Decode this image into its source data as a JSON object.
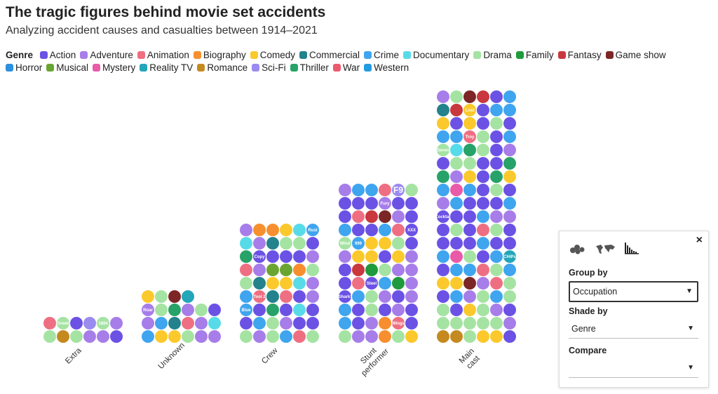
{
  "title": "The tragic figures behind movie set accidents",
  "subtitle": "Analyzing accident causes and casualties between 1914–2021",
  "legend": {
    "title": "Genre",
    "items": [
      {
        "name": "Action",
        "color": "#6b52e5"
      },
      {
        "name": "Adventure",
        "color": "#a77de9"
      },
      {
        "name": "Animation",
        "color": "#ef6f82"
      },
      {
        "name": "Biography",
        "color": "#f78f2e"
      },
      {
        "name": "Comedy",
        "color": "#fbc92b"
      },
      {
        "name": "Commercial",
        "color": "#23828c"
      },
      {
        "name": "Crime",
        "color": "#3fa5ef"
      },
      {
        "name": "Documentary",
        "color": "#58dbe8"
      },
      {
        "name": "Drama",
        "color": "#a5e3a3"
      },
      {
        "name": "Family",
        "color": "#1f9a3c"
      },
      {
        "name": "Fantasy",
        "color": "#c8383d"
      },
      {
        "name": "Game show",
        "color": "#7d2626"
      },
      {
        "name": "Horror",
        "color": "#2c8fe0"
      },
      {
        "name": "Musical",
        "color": "#6aa532"
      },
      {
        "name": "Mystery",
        "color": "#e95aa8"
      },
      {
        "name": "Reality TV",
        "color": "#23a6b9"
      },
      {
        "name": "Romance",
        "color": "#c48a1f"
      },
      {
        "name": "Sci-Fi",
        "color": "#9a8bf0"
      },
      {
        "name": "Thriller",
        "color": "#27a268"
      },
      {
        "name": "War",
        "color": "#ec5a6f"
      },
      {
        "name": "Western",
        "color": "#239be0"
      }
    ]
  },
  "chart_data": {
    "type": "dot-histogram",
    "group_by": "Occupation",
    "shade_by": "Genre",
    "categories": [
      {
        "label": [
          "Extra"
        ],
        "rows": [
          [
            "Drama",
            "Romance",
            "Drama",
            "Adventure",
            "Adventure",
            "Action"
          ],
          [
            "Animation",
            "Drama",
            "Action",
            "Sci-Fi",
            "Drama",
            "Adventure"
          ]
        ],
        "labels": {
          "1,1": "Greek",
          "1,4": "1884"
        }
      },
      {
        "label": [
          "Unknown"
        ],
        "rows": [
          [
            "Crime",
            "Comedy",
            "Comedy",
            "Drama",
            "Adventure",
            "Adventure"
          ],
          [
            "Adventure",
            "Crime",
            "Commercial",
            "Animation",
            "Adventure",
            "Documentary"
          ],
          [
            "Adventure",
            "Drama",
            "Thriller",
            "Adventure",
            "Drama",
            "Action"
          ],
          [
            "Comedy",
            "Drama",
            "Game show",
            "Reality TV"
          ]
        ],
        "labels": {
          "2,0": "Roar"
        }
      },
      {
        "label": [
          "Crew"
        ],
        "rows": [
          [
            "Drama",
            "Adventure",
            "Drama",
            "Crime",
            "Animation",
            "Drama"
          ],
          [
            "Action",
            "Crime",
            "Drama",
            "Adventure",
            "Action",
            "Action"
          ],
          [
            "Crime",
            "Action",
            "Thriller",
            "Action",
            "Documentary",
            "Action"
          ],
          [
            "Crime",
            "Animation",
            "Commercial",
            "Animation",
            "Action",
            "Adventure"
          ],
          [
            "Drama",
            "Commercial",
            "Comedy",
            "Comedy",
            "Documentary",
            "Adventure"
          ],
          [
            "Animation",
            "Adventure",
            "Musical",
            "Musical",
            "Biography",
            "Drama"
          ],
          [
            "Thriller",
            "Action",
            "Action",
            "Action",
            "Action",
            "Adventure"
          ],
          [
            "Documentary",
            "Adventure",
            "Commercial",
            "Drama",
            "Drama",
            "Action"
          ],
          [
            "Adventure",
            "Biography",
            "Biography",
            "Comedy",
            "Documentary",
            "Crime"
          ]
        ],
        "labels": {
          "2,0": "Blue",
          "3,1": "Tool 2",
          "6,1": "Copy",
          "8,5": "Rust"
        }
      },
      {
        "label": [
          "Stunt",
          "performer"
        ],
        "rows": [
          [
            "Drama",
            "Adventure",
            "Adventure",
            "Biography",
            "Drama",
            "Comedy"
          ],
          [
            "Crime",
            "Action",
            "Adventure",
            "Biography",
            "Animation",
            "Action"
          ],
          [
            "Crime",
            "Action",
            "Drama",
            "Action",
            "Adventure",
            "Action"
          ],
          [
            "Action",
            "Crime",
            "Drama",
            "Adventure",
            "Action",
            "Adventure"
          ],
          [
            "Action",
            "Animation",
            "Action",
            "Crime",
            "Family",
            "Adventure"
          ],
          [
            "Action",
            "Fantasy",
            "Family",
            "Drama",
            "Adventure",
            "Adventure"
          ],
          [
            "Adventure",
            "Comedy",
            "Comedy",
            "Action",
            "Comedy",
            "Adventure"
          ],
          [
            "Drama",
            "Crime",
            "Comedy",
            "Comedy",
            "Drama",
            "Action"
          ],
          [
            "Crime",
            "Action",
            "Action",
            "Crime",
            "Animation",
            "Action"
          ],
          [
            "Action",
            "Animation",
            "Fantasy",
            "Game show",
            "Adventure",
            "Action"
          ],
          [
            "Action",
            "Action",
            "Action",
            "Adventure",
            "Action",
            "Action"
          ],
          [
            "Adventure",
            "Crime",
            "Crime",
            "Animation",
            "Sci-Fi",
            "Drama"
          ]
        ],
        "labels": {
          "1,4": "Wings",
          "3,0": "Shark!",
          "4,2": "Steel",
          "7,0": "Wind",
          "7,1": "999",
          "8,5": "XXX",
          "10,3": "Fury",
          "11,4": "F9"
        }
      },
      {
        "label": [
          "Main",
          "cast"
        ],
        "rows": [
          [
            "Romance",
            "Romance",
            "Drama",
            "Comedy",
            "Comedy",
            "Action"
          ],
          [
            "Drama",
            "Drama",
            "Drama",
            "Drama",
            "Drama",
            "Adventure"
          ],
          [
            "Drama",
            "Action",
            "Comedy",
            "Drama",
            "Adventure",
            "Action"
          ],
          [
            "Action",
            "Crime",
            "Adventure",
            "Drama",
            "Crime",
            "Drama"
          ],
          [
            "Comedy",
            "Comedy",
            "Game show",
            "Adventure",
            "Animation",
            "Drama"
          ],
          [
            "Action",
            "Crime",
            "Crime",
            "Animation",
            "Drama",
            "Crime"
          ],
          [
            "Crime",
            "Mystery",
            "Drama",
            "Action",
            "Crime",
            "Reality TV"
          ],
          [
            "Action",
            "Action",
            "Action",
            "Crime",
            "Action",
            "Action"
          ],
          [
            "Action",
            "Drama",
            "Action",
            "Animation",
            "Drama",
            "Action"
          ],
          [
            "Action",
            "Action",
            "Action",
            "Crime",
            "Adventure",
            "Adventure"
          ],
          [
            "Adventure",
            "Crime",
            "Action",
            "Action",
            "Action",
            "Crime"
          ],
          [
            "Crime",
            "Mystery",
            "Crime",
            "Action",
            "Drama",
            "Action"
          ],
          [
            "Thriller",
            "Adventure",
            "Comedy",
            "Action",
            "Thriller",
            "Comedy"
          ],
          [
            "Action",
            "Drama",
            "Drama",
            "Action",
            "Action",
            "Thriller"
          ],
          [
            "Drama",
            "Documentary",
            "Thriller",
            "Drama",
            "Action",
            "Adventure"
          ],
          [
            "Crime",
            "Crime",
            "Animation",
            "Drama",
            "Action",
            "Crime"
          ],
          [
            "Comedy",
            "Action",
            "Comedy",
            "Action",
            "Drama",
            "Action"
          ],
          [
            "Commercial",
            "Fantasy",
            "Comedy",
            "Action",
            "Crime",
            "Crime"
          ],
          [
            "Adventure",
            "Drama",
            "Game show",
            "Fantasy",
            "Action",
            "Crime"
          ]
        ],
        "labels": {
          "6,5": "CHiPs",
          "9,0": "Cocktail",
          "14,0": "Seven",
          "15,2": "Troy",
          "17,2": "Lost"
        }
      }
    ]
  },
  "panel": {
    "close_label": "×",
    "group_by_label": "Group by",
    "group_by_value": "Occupation",
    "shade_by_label": "Shade by",
    "shade_by_value": "Genre",
    "compare_label": "Compare",
    "compare_value": ""
  }
}
